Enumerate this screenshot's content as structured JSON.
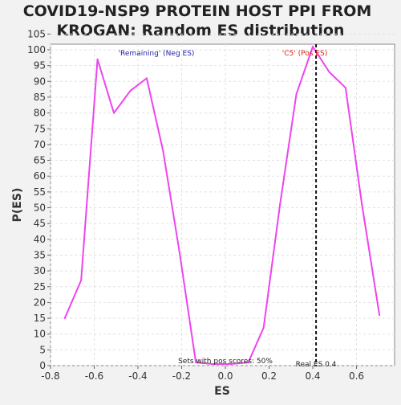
{
  "chart_data": {
    "type": "line",
    "title": "COVID19-NSP9 PROTEIN HOST PPI FROM\nKROGAN: Random ES distribution",
    "xlabel": "ES",
    "ylabel": "P(ES)",
    "xlim": [
      -0.8,
      0.8
    ],
    "ylim": [
      0,
      105
    ],
    "x_ticks": [
      "-0.8",
      "-0.6",
      "-0.4",
      "-0.2",
      "0.0",
      "0.2",
      "0.4",
      "0.6"
    ],
    "y_ticks": [
      "0",
      "5",
      "10",
      "15",
      "20",
      "25",
      "30",
      "35",
      "40",
      "45",
      "50",
      "55",
      "60",
      "65",
      "70",
      "75",
      "80",
      "85",
      "90",
      "95",
      "100",
      "105"
    ],
    "grid": true,
    "series": [
      {
        "color": "#ee44ee",
        "x": [
          -0.735,
          -0.66,
          -0.585,
          -0.51,
          -0.435,
          -0.36,
          -0.285,
          -0.21,
          -0.135,
          -0.06,
          0.025,
          0.105,
          0.175,
          0.25,
          0.325,
          0.4,
          0.475,
          0.55,
          0.625,
          0.705
        ],
        "y": [
          15,
          27,
          97,
          80,
          87,
          91,
          68,
          36,
          1,
          0.5,
          0.5,
          1,
          12,
          51,
          86,
          101,
          93,
          88,
          51,
          16
        ]
      }
    ],
    "annotations": {
      "neg_label": "'Remaining' (Neg ES)",
      "neg_color": "#2222aa",
      "pos_label": "'C5' (Pos ES)",
      "pos_color": "#dd2222",
      "sets_text": "Sets with pos scores: 50%",
      "real_es_label": "Real ES 0.4",
      "real_es_value": 0.415
    }
  }
}
